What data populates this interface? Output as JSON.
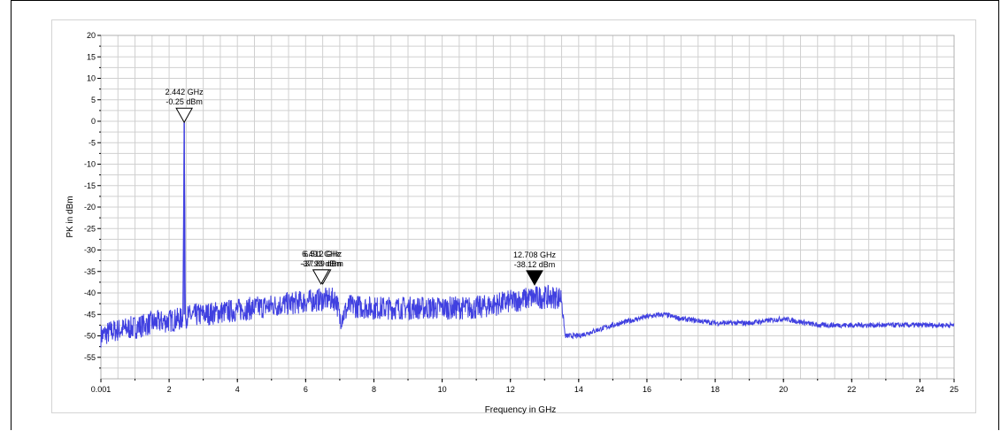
{
  "chart_data": {
    "type": "line",
    "xlabel": "Frequency in GHz",
    "ylabel": "PK in dBm",
    "xlim": [
      0.001,
      25
    ],
    "ylim": [
      -60,
      20
    ],
    "x_ticks": [
      {
        "v": 0.001,
        "label": "0.001"
      },
      {
        "v": 2,
        "label": "2"
      },
      {
        "v": 4,
        "label": "4"
      },
      {
        "v": 6,
        "label": "6"
      },
      {
        "v": 8,
        "label": "8"
      },
      {
        "v": 10,
        "label": "10"
      },
      {
        "v": 12,
        "label": "12"
      },
      {
        "v": 14,
        "label": "14"
      },
      {
        "v": 16,
        "label": "16"
      },
      {
        "v": 18,
        "label": "18"
      },
      {
        "v": 20,
        "label": "20"
      },
      {
        "v": 22,
        "label": "22"
      },
      {
        "v": 24,
        "label": "24"
      },
      {
        "v": 25,
        "label": "25"
      }
    ],
    "y_ticks": [
      20,
      15,
      10,
      5,
      0,
      -5,
      -10,
      -15,
      -20,
      -25,
      -30,
      -35,
      -40,
      -45,
      -50,
      -55
    ],
    "grid": true,
    "series_color": "#4040e0",
    "trace": [
      [
        0.001,
        -50
      ],
      [
        0.3,
        -49
      ],
      [
        0.6,
        -48.5
      ],
      [
        1.0,
        -48
      ],
      [
        1.5,
        -47
      ],
      [
        2.0,
        -46.5
      ],
      [
        2.4,
        -46
      ],
      [
        2.442,
        -0.25
      ],
      [
        2.48,
        -45.5
      ],
      [
        3.0,
        -45
      ],
      [
        3.5,
        -44.5
      ],
      [
        4.0,
        -44
      ],
      [
        4.5,
        -43.5
      ],
      [
        5.0,
        -43
      ],
      [
        5.5,
        -42.5
      ],
      [
        6.0,
        -42
      ],
      [
        6.5,
        -41.5
      ],
      [
        6.9,
        -41.5
      ],
      [
        7.0,
        -46
      ],
      [
        7.3,
        -43
      ],
      [
        8.0,
        -43.5
      ],
      [
        9.0,
        -43.5
      ],
      [
        10.0,
        -43.5
      ],
      [
        11.0,
        -43.5
      ],
      [
        12.0,
        -42
      ],
      [
        12.708,
        -41
      ],
      [
        13.5,
        -41
      ],
      [
        13.6,
        -50
      ],
      [
        14.0,
        -50
      ],
      [
        15.0,
        -47.5
      ],
      [
        16.0,
        -45.5
      ],
      [
        16.5,
        -45
      ],
      [
        17.0,
        -46
      ],
      [
        18.0,
        -47
      ],
      [
        19.0,
        -47
      ],
      [
        20.0,
        -46
      ],
      [
        21.0,
        -47.5
      ],
      [
        22.0,
        -47.5
      ],
      [
        23.0,
        -47.5
      ],
      [
        24.0,
        -47.5
      ],
      [
        25.0,
        -47.5
      ]
    ],
    "markers": [
      {
        "x": 2.442,
        "y": -0.25,
        "label1": "2.442 GHz",
        "label2": "-0.25 dBm",
        "filled": false
      },
      {
        "x": 6.5,
        "y": -37.9,
        "label1": "6.512 GHz",
        "label2": "-37.89 dBm",
        "filled": false
      },
      {
        "x": 6.45,
        "y": -37.9,
        "label1": "6.491 GHz",
        "label2": "-37.93 dBm",
        "filled": false
      },
      {
        "x": 12.708,
        "y": -38.12,
        "label1": "12.708 GHz",
        "label2": "-38.12 dBm",
        "filled": true
      }
    ]
  }
}
